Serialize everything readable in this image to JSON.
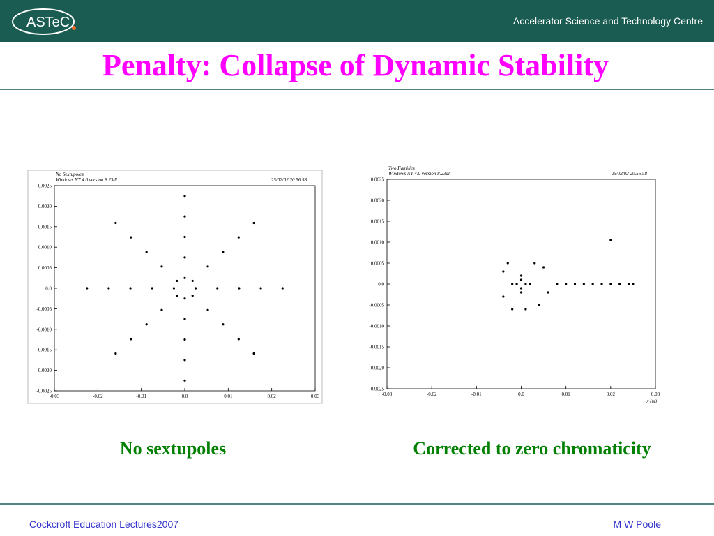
{
  "header": {
    "logo": "ASTeC",
    "organization": "Accelerator Science and Technology Centre"
  },
  "title": "Penalty:  Collapse of Dynamic Stability",
  "captions": [
    "No sextupoles",
    "Corrected to zero chromaticity"
  ],
  "footer": {
    "left": "Cockcroft Education Lectures2007",
    "right": "M W Poole"
  },
  "chart_data": [
    {
      "type": "scatter",
      "title": "No Sextupoles",
      "subtitle": "Windows NT 4.0 version 8.23dl",
      "timestamp": "25/02/02  20.56.58",
      "color": "#000000",
      "xlim": [
        -0.03,
        0.03
      ],
      "ylim": [
        -0.0025,
        0.0025
      ],
      "xticks": [
        -0.03,
        -0.02,
        -0.01,
        {
          "value": 0,
          "label": "0.0"
        },
        0.01,
        0.02,
        0.03
      ],
      "yticks": [
        -0.0025,
        {
          "value": -0.002,
          "label": "-0.0020"
        },
        -0.0015,
        {
          "value": -0.001,
          "label": "-0.0010"
        },
        -0.0005,
        {
          "value": 0,
          "label": "0.0"
        },
        0.0005,
        {
          "value": 0.001,
          "label": "0.0010"
        },
        0.0015,
        {
          "value": 0.002,
          "label": "0.0020"
        },
        0.0025
      ],
      "x": [
        0.0025,
        0.0018,
        0,
        -0.0018,
        -0.0025,
        -0.0018,
        0,
        0.0018,
        0.0075,
        0.0053,
        0,
        -0.0053,
        -0.0075,
        -0.0053,
        0,
        0.0053,
        0.0125,
        0.0088,
        0,
        -0.0088,
        -0.0125,
        -0.0088,
        0,
        0.0088,
        0.0175,
        0.0124,
        0,
        -0.0124,
        -0.0175,
        -0.0124,
        0,
        0.0124,
        0.0225,
        0.0159,
        0,
        -0.0159,
        -0.0225,
        -0.0159,
        0,
        0.0159
      ],
      "values": [
        0,
        0.00018,
        0.00025,
        0.00018,
        0,
        -0.00018,
        -0.00025,
        -0.00018,
        0,
        0.00053,
        0.00075,
        0.00053,
        0,
        -0.00053,
        -0.00075,
        -0.00053,
        0,
        0.00088,
        0.00125,
        0.00088,
        0,
        -0.00088,
        -0.00125,
        -0.00088,
        0,
        0.00124,
        0.00175,
        0.00124,
        0,
        -0.00124,
        -0.00175,
        -0.00124,
        0,
        0.00159,
        0.00225,
        0.00159,
        0,
        -0.00159,
        -0.00225,
        -0.00159
      ]
    },
    {
      "type": "scatter",
      "title": "Two Families",
      "subtitle": "Windows NT 4.0 version 8.23dl",
      "timestamp": "25/02/02  20.56.58",
      "xlabel": "x (m)",
      "color": "#000000",
      "xlim": [
        -0.03,
        0.03
      ],
      "ylim": [
        -0.0025,
        0.0025
      ],
      "xticks": [
        -0.03,
        -0.02,
        -0.01,
        {
          "value": 0,
          "label": "0.0"
        },
        0.01,
        0.02,
        0.03
      ],
      "yticks": [
        -0.0025,
        {
          "value": -0.002,
          "label": "-0.0020"
        },
        -0.0015,
        {
          "value": -0.001,
          "label": "-0.0010"
        },
        -0.0005,
        {
          "value": 0,
          "label": "0.0"
        },
        0.0005,
        {
          "value": 0.001,
          "label": "0.0010"
        },
        0.0015,
        {
          "value": 0.002,
          "label": "0.0020"
        },
        0.0025
      ],
      "x": [
        0.001,
        -0.001,
        0,
        0,
        0.002,
        -0.002,
        0,
        0,
        -0.004,
        -0.004,
        0.005,
        0.006,
        0.003,
        -0.002,
        0.001,
        -0.003,
        0.004,
        0.008,
        0.01,
        0.012,
        0.014,
        0.016,
        0.018,
        0.02,
        0.022,
        0.024,
        0.025,
        0.02
      ],
      "values": [
        0,
        0,
        0.0001,
        -0.0001,
        0,
        0,
        0.0002,
        -0.0002,
        0.0003,
        -0.0003,
        0.0004,
        -0.0002,
        0.0005,
        -0.0006,
        -0.0006,
        0.0005,
        -0.0005,
        0,
        0,
        0,
        0,
        0,
        0,
        0,
        0,
        0,
        0,
        0.00105
      ]
    }
  ]
}
